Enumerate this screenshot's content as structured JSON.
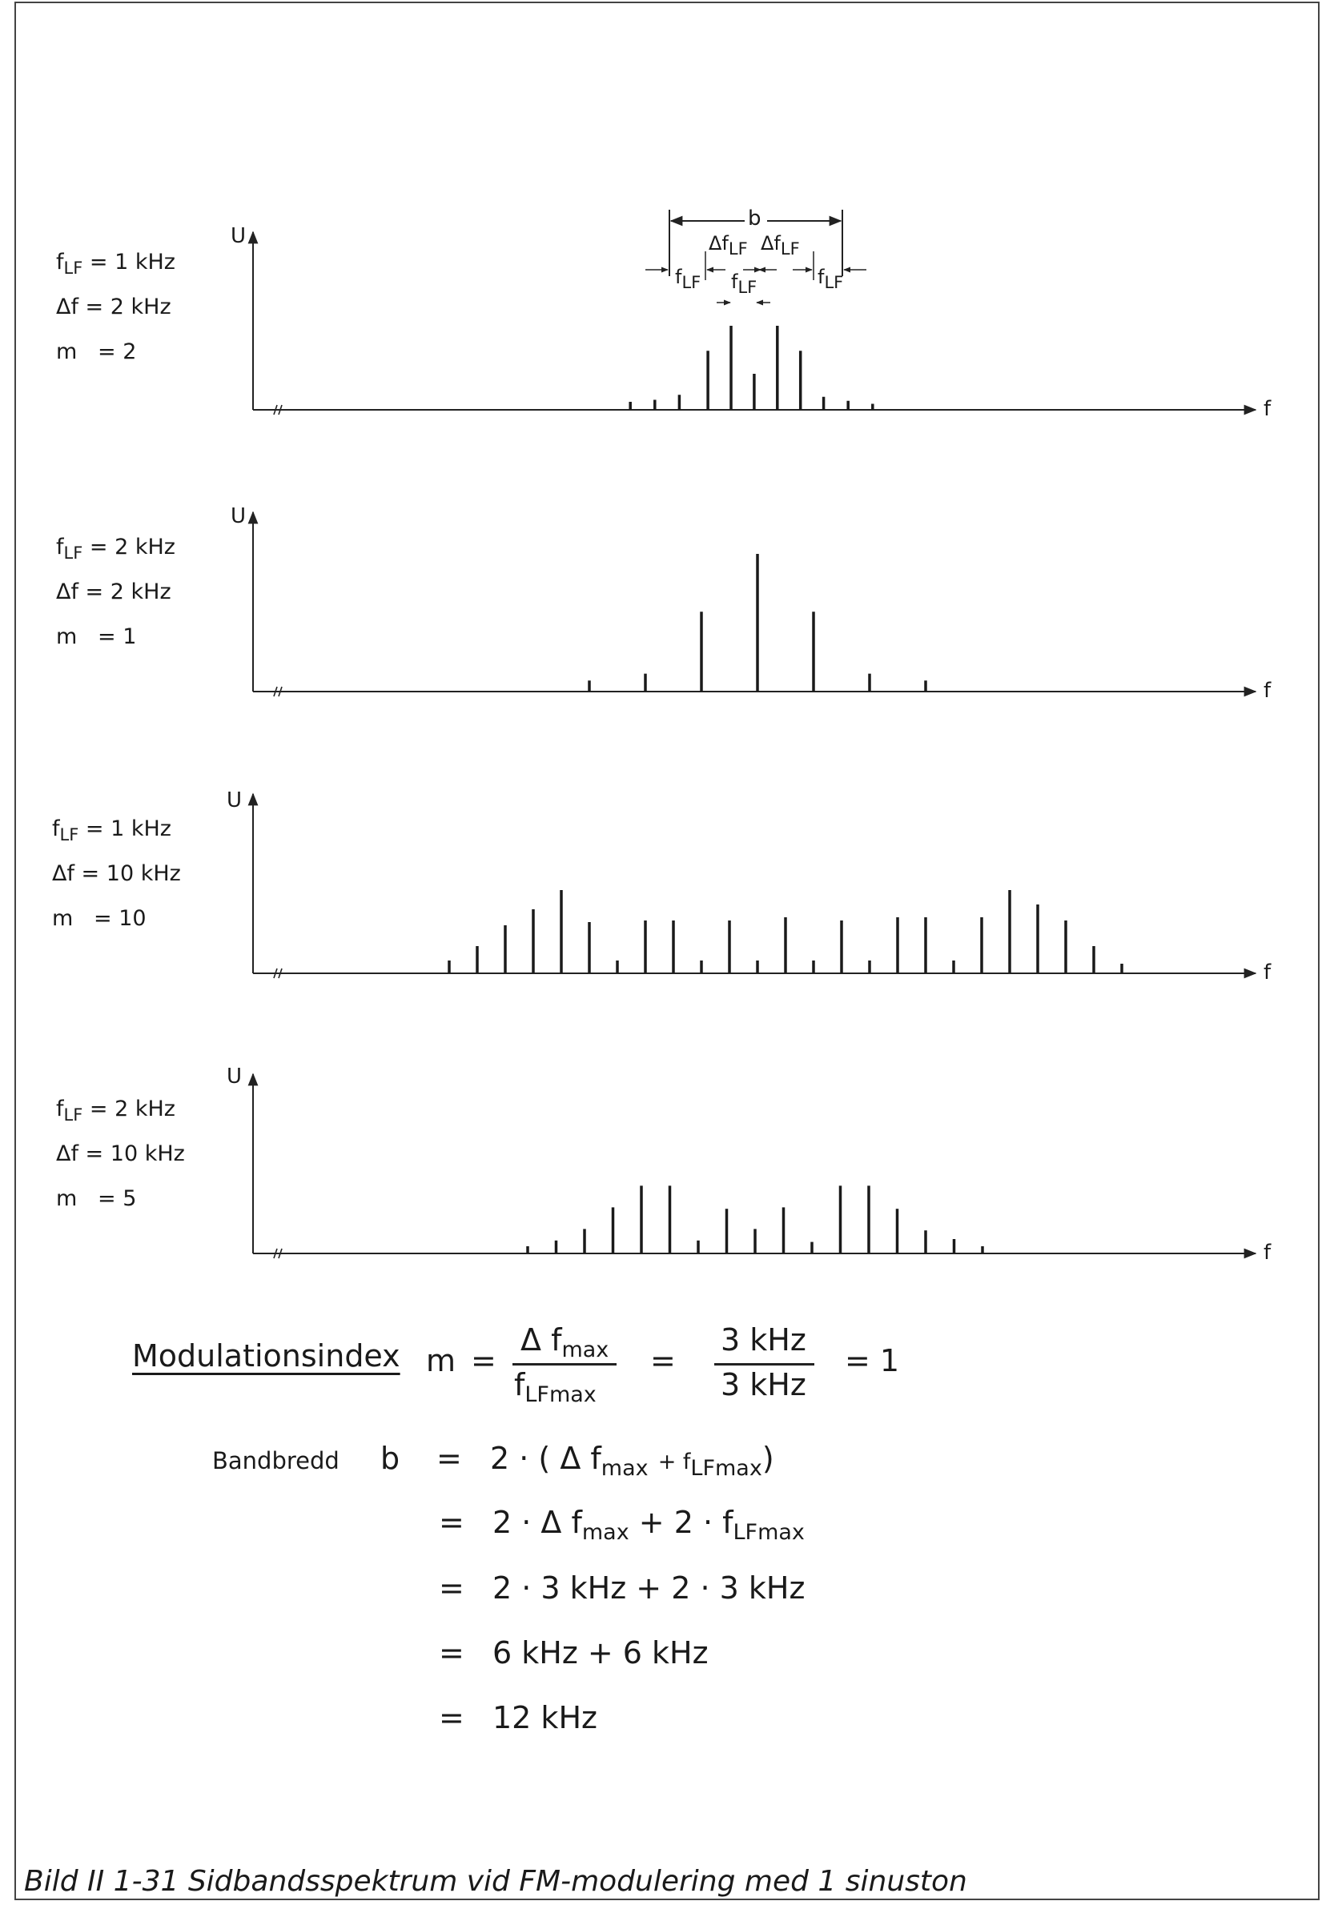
{
  "panels": [
    {
      "f_lf": "= 1 kHz",
      "delta_f": "= 2 kHz",
      "m": "= 2",
      "lines": [
        [
          -3.7,
          0.08
        ],
        [
          -2.8,
          0.1
        ],
        [
          -1.9,
          0.15
        ],
        [
          -0.85,
          0.59
        ],
        [
          0,
          0.84
        ],
        [
          0.85,
          0.36
        ],
        [
          1.7,
          0.84
        ],
        [
          2.55,
          0.59
        ],
        [
          3.4,
          0.13
        ],
        [
          4.3,
          0.09
        ],
        [
          5.2,
          0.06
        ]
      ]
    },
    {
      "f_lf": "= 2 kHz",
      "delta_f": "= 2 kHz",
      "m": "= 1",
      "lines": [
        [
          -6,
          0.08
        ],
        [
          -4,
          0.13
        ],
        [
          -2,
          0.58
        ],
        [
          0,
          1.0
        ],
        [
          2,
          0.58
        ],
        [
          4,
          0.13
        ],
        [
          6,
          0.08
        ]
      ]
    },
    {
      "f_lf": "= 1  kHz",
      "delta_f": "= 10 kHz",
      "m": "= 10",
      "lines": [
        [
          -11,
          0.08
        ],
        [
          -10,
          0.17
        ],
        [
          -9,
          0.3
        ],
        [
          -8,
          0.4
        ],
        [
          -7,
          0.52
        ],
        [
          -6,
          0.32
        ],
        [
          -5,
          0.08
        ],
        [
          -4,
          0.33
        ],
        [
          -3,
          0.33
        ],
        [
          -2,
          0.08
        ],
        [
          -1,
          0.33
        ],
        [
          0,
          0.08
        ],
        [
          1,
          0.35
        ],
        [
          2,
          0.08
        ],
        [
          3,
          0.33
        ],
        [
          4,
          0.08
        ],
        [
          5,
          0.35
        ],
        [
          6,
          0.35
        ],
        [
          7,
          0.08
        ],
        [
          8,
          0.35
        ],
        [
          9,
          0.52
        ],
        [
          10,
          0.43
        ],
        [
          11,
          0.33
        ],
        [
          12,
          0.17
        ],
        [
          13,
          0.06
        ]
      ]
    },
    {
      "f_lf": "= 2 kHz",
      "delta_f": "= 10 kHz",
      "m": "= 5",
      "lines": [
        [
          -8,
          0.05
        ],
        [
          -7,
          0.09
        ],
        [
          -6,
          0.17
        ],
        [
          -5,
          0.32
        ],
        [
          -4,
          0.47
        ],
        [
          -3,
          0.47
        ],
        [
          -2,
          0.09
        ],
        [
          -1,
          0.31
        ],
        [
          0,
          0.17
        ],
        [
          1,
          0.32
        ],
        [
          2,
          0.08
        ],
        [
          3,
          0.47
        ],
        [
          4,
          0.47
        ],
        [
          5,
          0.31
        ],
        [
          6,
          0.16
        ],
        [
          7,
          0.1
        ],
        [
          8,
          0.05
        ]
      ]
    }
  ],
  "labels": {
    "axis_u": "U",
    "axis_f": "f",
    "param_f": "f",
    "param_lf": "LF",
    "param_delta": "Δf",
    "param_m": "m"
  },
  "annotation": {
    "b": "b",
    "delta_left": "Δf",
    "delta_right": "Δf",
    "lf": "LF",
    "f": "f"
  },
  "modulation": {
    "title": "Modulationsindex",
    "m": "m",
    "eq": "=",
    "delta_f": "Δ f",
    "max": "max",
    "f_lf": "f",
    "lfmax": "LFmax",
    "num": "3  kHz",
    "den": "3  kHz",
    "result": "=  1"
  },
  "bandwidth": {
    "label": "Bandbredd",
    "b": "b",
    "eq": "=",
    "line1": {
      "a": "2 · ( Δ f",
      "max1": "max",
      "plus": "+ f",
      "lfmax": "LFmax",
      "close": ")"
    },
    "line2": {
      "a": "2  ·  Δ f",
      "max1": "max",
      "mid": "+  2  ·  f",
      "lfmax": "LFmax"
    },
    "line3": "2 · 3 kHz  +  2 · 3 kHz",
    "line4": "6  kHz  +  6  kHz",
    "line5": "12  kHz"
  },
  "caption": "Bild II 1-31 Sidbandsspektrum vid FM-modulering med 1 sinuston"
}
